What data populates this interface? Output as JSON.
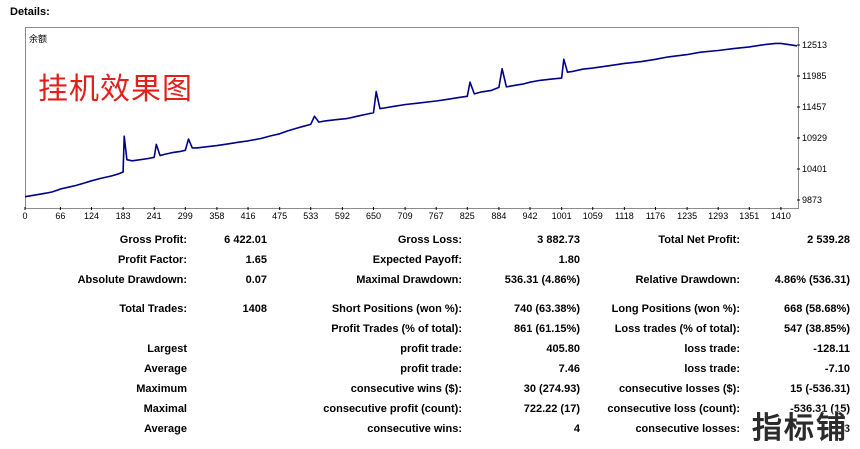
{
  "section_title": "Details:",
  "overlay_title": "挂机效果图",
  "chart_data": {
    "type": "line",
    "title": "",
    "series_label": "余额",
    "x_ticks": [
      0,
      66,
      124,
      183,
      241,
      299,
      358,
      416,
      475,
      533,
      592,
      650,
      709,
      767,
      825,
      884,
      942,
      1001,
      1059,
      1118,
      1176,
      1235,
      1293,
      1351,
      1410
    ],
    "y_ticks": [
      9873,
      10401,
      10929,
      11457,
      11985,
      12513
    ],
    "ylim": [
      9873,
      12513
    ],
    "xlim": [
      0,
      1440
    ],
    "line_color": "#00008b",
    "x": [
      0,
      20,
      40,
      50,
      60,
      66,
      80,
      95,
      110,
      124,
      140,
      160,
      175,
      183,
      185,
      190,
      200,
      215,
      230,
      241,
      245,
      252,
      260,
      275,
      290,
      299,
      305,
      312,
      320,
      340,
      358,
      380,
      400,
      416,
      440,
      460,
      475,
      490,
      505,
      520,
      533,
      540,
      548,
      560,
      580,
      600,
      620,
      640,
      650,
      655,
      662,
      670,
      690,
      710,
      730,
      767,
      790,
      810,
      825,
      830,
      838,
      850,
      870,
      884,
      890,
      898,
      910,
      930,
      942,
      960,
      980,
      1001,
      1005,
      1012,
      1020,
      1040,
      1059,
      1090,
      1118,
      1150,
      1176,
      1200,
      1235,
      1260,
      1293,
      1320,
      1351,
      1380,
      1400,
      1410,
      1440
    ],
    "values": [
      9930,
      9960,
      9990,
      10010,
      10040,
      10060,
      10090,
      10120,
      10160,
      10200,
      10240,
      10280,
      10320,
      10350,
      10960,
      10560,
      10540,
      10560,
      10580,
      10600,
      10820,
      10630,
      10650,
      10680,
      10700,
      10720,
      10910,
      10760,
      10760,
      10780,
      10800,
      10830,
      10860,
      10880,
      10920,
      10970,
      11000,
      11050,
      11090,
      11130,
      11160,
      11300,
      11200,
      11220,
      11240,
      11260,
      11300,
      11340,
      11360,
      11720,
      11430,
      11440,
      11470,
      11500,
      11520,
      11560,
      11590,
      11620,
      11640,
      11880,
      11680,
      11710,
      11740,
      11790,
      12110,
      11800,
      11820,
      11850,
      11880,
      11910,
      11930,
      11950,
      12270,
      12050,
      12060,
      12100,
      12120,
      12160,
      12200,
      12230,
      12270,
      12310,
      12350,
      12390,
      12420,
      12450,
      12480,
      12520,
      12540,
      12540,
      12500
    ]
  },
  "stats": {
    "gross_profit_label": "Gross Profit:",
    "gross_profit": "6 422.01",
    "gross_loss_label": "Gross Loss:",
    "gross_loss": "3 882.73",
    "net_profit_label": "Total Net Profit:",
    "net_profit": "2 539.28",
    "profit_factor_label": "Profit Factor:",
    "profit_factor": "1.65",
    "expected_payoff_label": "Expected Payoff:",
    "expected_payoff": "1.80",
    "abs_dd_label": "Absolute Drawdown:",
    "abs_dd": "0.07",
    "max_dd_label": "Maximal Drawdown:",
    "max_dd": "536.31 (4.86%)",
    "rel_dd_label": "Relative Drawdown:",
    "rel_dd": "4.86% (536.31)",
    "total_trades_label": "Total Trades:",
    "total_trades": "1408",
    "short_label": "Short Positions (won %):",
    "short": "740 (63.38%)",
    "long_label": "Long Positions (won %):",
    "long": "668 (58.68%)",
    "profit_trades_label": "Profit Trades (% of total):",
    "profit_trades": "861 (61.15%)",
    "loss_trades_label": "Loss trades (% of total):",
    "loss_trades": "547 (38.85%)",
    "largest_label": "Largest",
    "largest_profit_label": "profit trade:",
    "largest_profit": "405.80",
    "largest_loss_label": "loss trade:",
    "largest_loss": "-128.11",
    "average_label": "Average",
    "average_profit_label": "profit trade:",
    "average_profit": "7.46",
    "average_loss_label": "loss trade:",
    "average_loss": "-7.10",
    "maximum_label": "Maximum",
    "max_cons_wins_label": "consecutive wins ($):",
    "max_cons_wins": "30 (274.93)",
    "max_cons_losses_label": "consecutive losses ($):",
    "max_cons_losses": "15 (-536.31)",
    "maximal_label": "Maximal",
    "maximal_profit_label": "consecutive profit (count):",
    "maximal_profit": "722.22 (17)",
    "maximal_loss_label": "consecutive loss (count):",
    "maximal_loss": "-536.31 (15)",
    "average2_label": "Average",
    "avg_cons_wins_label": "consecutive wins:",
    "avg_cons_wins": "4",
    "avg_cons_losses_label": "consecutive losses:",
    "avg_cons_losses": "3"
  },
  "watermark": "指标铺"
}
